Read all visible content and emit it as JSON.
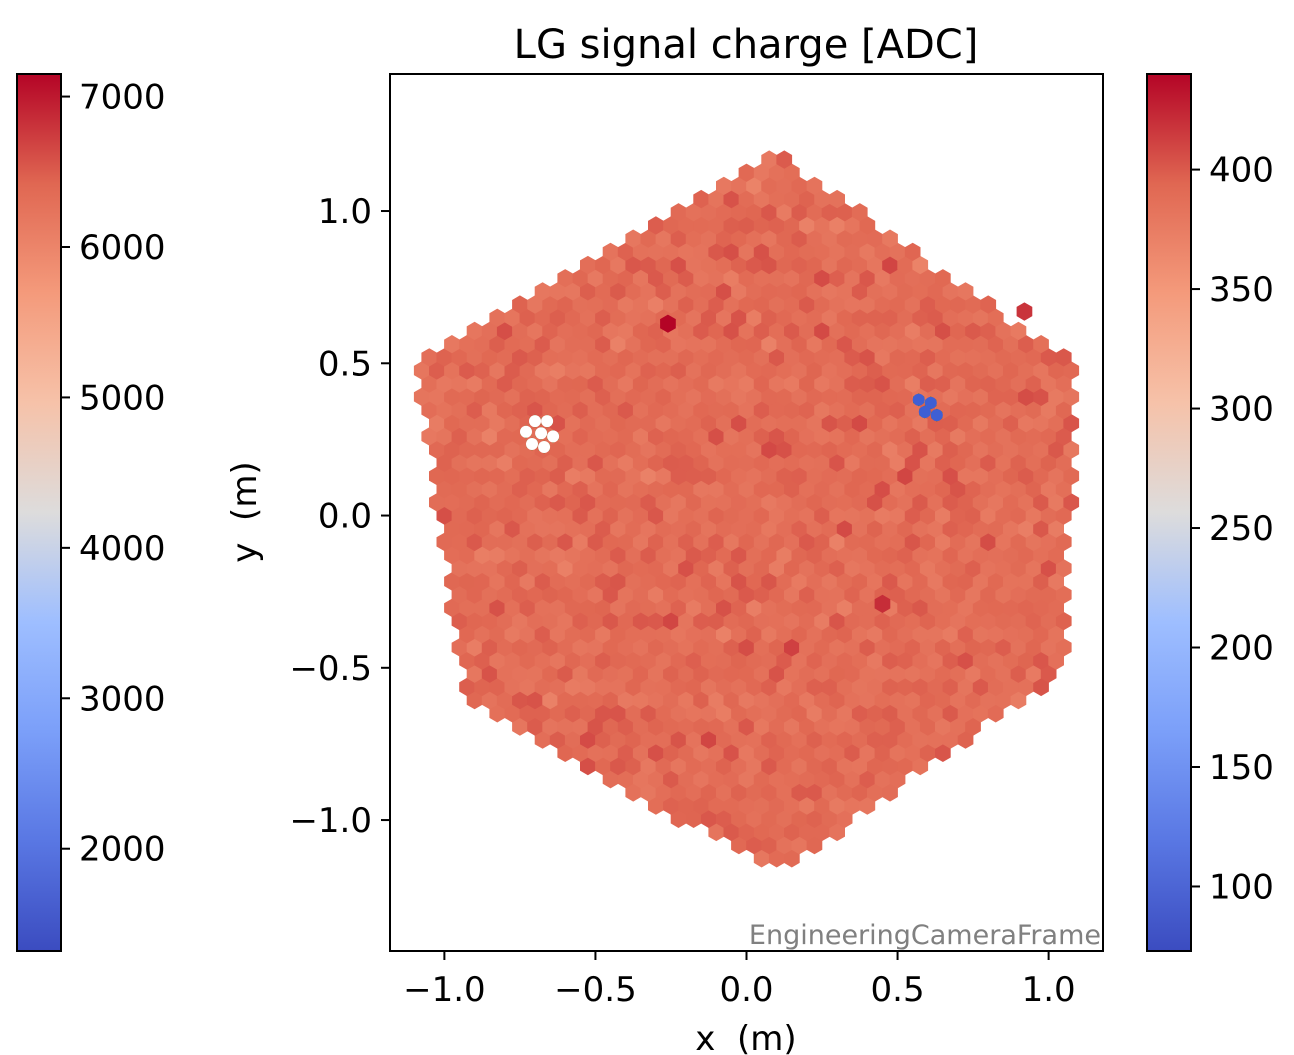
{
  "chart_data": {
    "type": "heatmap",
    "title": "LG signal charge [ADC]",
    "xlabel": "x  (m)",
    "ylabel": "y  (m)",
    "xlim": [
      -1.18,
      1.18
    ],
    "ylim": [
      -1.43,
      1.45
    ],
    "x_ticks": [
      {
        "value": -1.0,
        "label": "−1.0"
      },
      {
        "value": -0.5,
        "label": "−0.5"
      },
      {
        "value": 0.0,
        "label": "0.0"
      },
      {
        "value": 0.5,
        "label": "0.5"
      },
      {
        "value": 1.0,
        "label": "1.0"
      }
    ],
    "y_ticks": [
      {
        "value": 1.0,
        "label": "1.0"
      },
      {
        "value": 0.5,
        "label": "0.5"
      },
      {
        "value": 0.0,
        "label": "0.0"
      },
      {
        "value": -0.5,
        "label": "−0.5"
      },
      {
        "value": -1.0,
        "label": "−1.0"
      }
    ],
    "frame_label": "EngineeringCameraFrame",
    "colormap": "coolwarm",
    "pixel_pitch_m": 0.05,
    "camera_vertices_m": [
      [
        0.1,
        1.19
      ],
      [
        1.08,
        0.5
      ],
      [
        1.07,
        -0.5
      ],
      [
        0.1,
        -1.18
      ],
      [
        -0.93,
        -0.6
      ],
      [
        -1.1,
        0.5
      ]
    ],
    "typical_value": 6350,
    "hot_pixels": [
      {
        "x": -0.26,
        "y": 0.63,
        "value": 7150
      },
      {
        "x": 0.45,
        "y": -0.29,
        "value": 6850
      },
      {
        "x": 0.92,
        "y": 0.67,
        "value": 6800
      }
    ],
    "left_colorbar": {
      "range": [
        1320,
        7150
      ],
      "ticks": [
        {
          "value": 2000,
          "label": "2000"
        },
        {
          "value": 3000,
          "label": "3000"
        },
        {
          "value": 4000,
          "label": "4000"
        },
        {
          "value": 5000,
          "label": "5000"
        },
        {
          "value": 6000,
          "label": "6000"
        },
        {
          "value": 7000,
          "label": "7000"
        }
      ]
    },
    "right_colorbar": {
      "range": [
        73,
        440
      ],
      "ticks": [
        {
          "value": 100,
          "label": "100"
        },
        {
          "value": 150,
          "label": "150"
        },
        {
          "value": 200,
          "label": "200"
        },
        {
          "value": 250,
          "label": "250"
        },
        {
          "value": 300,
          "label": "300"
        },
        {
          "value": 350,
          "label": "350"
        },
        {
          "value": 400,
          "label": "400"
        }
      ]
    },
    "highlighted_groups": [
      {
        "outline_color": "#228b22",
        "fill_color": "#ffffff",
        "pixels": [
          [
            -0.7,
            0.31
          ],
          [
            -0.66,
            0.31
          ],
          [
            -0.73,
            0.275
          ],
          [
            -0.68,
            0.27
          ],
          [
            -0.64,
            0.26
          ],
          [
            -0.71,
            0.235
          ],
          [
            -0.67,
            0.225
          ]
        ]
      },
      {
        "outline_color": "#228b22",
        "fill_color": "#3f5fd4",
        "pixels": [
          [
            0.57,
            0.38
          ],
          [
            0.61,
            0.37
          ],
          [
            0.59,
            0.34
          ],
          [
            0.63,
            0.33
          ]
        ]
      }
    ]
  }
}
